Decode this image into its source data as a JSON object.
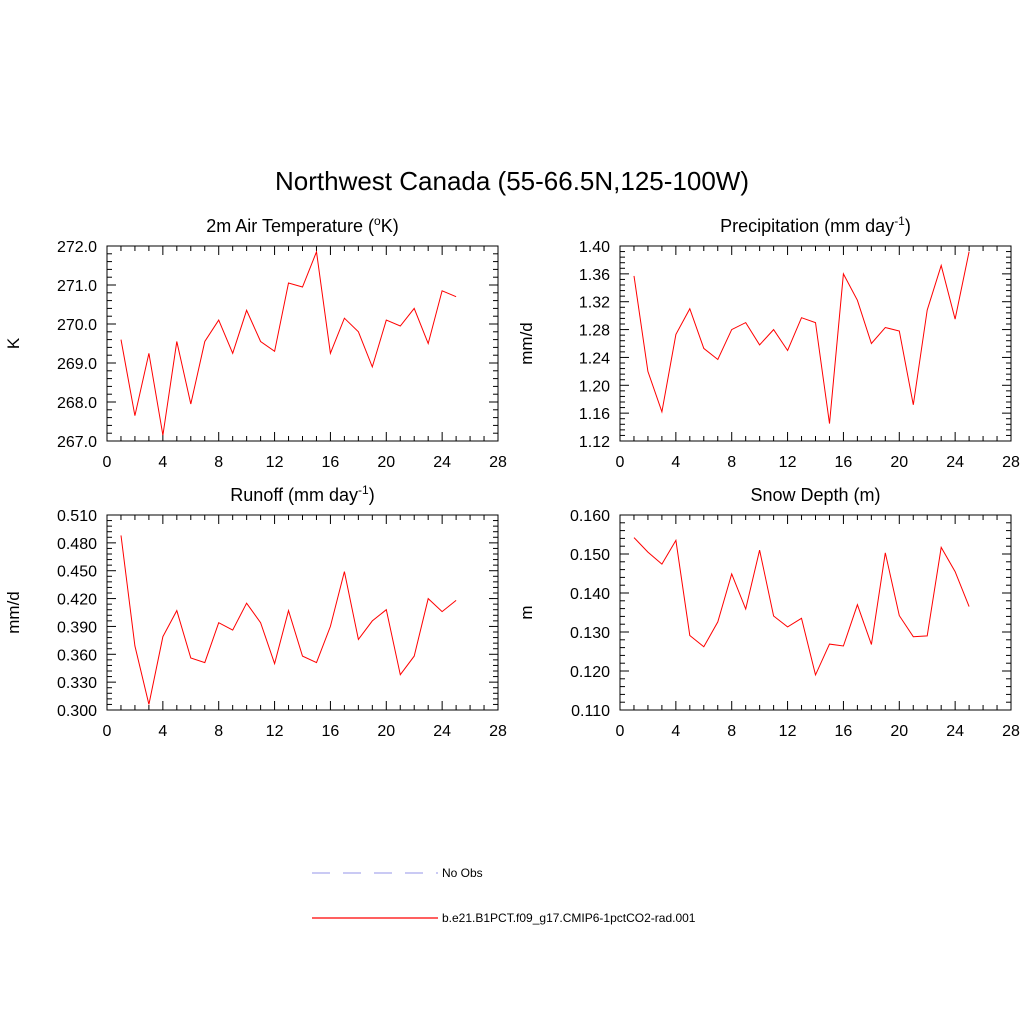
{
  "figure": {
    "title": "Northwest Canada (55-66.5N,125-100W)"
  },
  "chart_data": [
    {
      "type": "line",
      "title": "2m Air Temperature (oK)",
      "title_parts": {
        "prefix": "2m Air Temperature (",
        "sup": "o",
        "suffix": "K)"
      },
      "xlabel": "",
      "ylabel": "K",
      "xlim": [
        0,
        28
      ],
      "ylim": [
        267.0,
        272.0
      ],
      "xticks": [
        0,
        4,
        8,
        12,
        16,
        20,
        24,
        28
      ],
      "yticks": [
        "267.0",
        "268.0",
        "269.0",
        "270.0",
        "271.0",
        "272.0"
      ],
      "grid": false,
      "series": [
        {
          "color": "#ff0000",
          "x": [
            1,
            2,
            3,
            4,
            5,
            6,
            7,
            8,
            9,
            10,
            11,
            12,
            13,
            14,
            15,
            16,
            17,
            18,
            19,
            20,
            21,
            22,
            23,
            24,
            25
          ],
          "values": [
            269.6,
            267.65,
            269.25,
            267.15,
            269.55,
            267.95,
            269.55,
            270.1,
            269.25,
            270.35,
            269.55,
            269.3,
            271.05,
            270.95,
            271.85,
            269.25,
            270.15,
            269.8,
            268.9,
            270.1,
            269.95,
            270.4,
            269.5,
            270.85,
            270.7
          ]
        }
      ]
    },
    {
      "type": "line",
      "title": "Precipitation (mm day-1)",
      "title_parts": {
        "prefix": "Precipitation (mm day",
        "sup": "-1",
        "suffix": ")"
      },
      "xlabel": "",
      "ylabel": "mm/d",
      "xlim": [
        0,
        28
      ],
      "ylim": [
        1.12,
        1.4
      ],
      "xticks": [
        0,
        4,
        8,
        12,
        16,
        20,
        24,
        28
      ],
      "yticks": [
        "1.12",
        "1.16",
        "1.20",
        "1.24",
        "1.28",
        "1.32",
        "1.36",
        "1.40"
      ],
      "grid": false,
      "series": [
        {
          "color": "#ff0000",
          "x": [
            1,
            2,
            3,
            4,
            5,
            6,
            7,
            8,
            9,
            10,
            11,
            12,
            13,
            14,
            15,
            16,
            17,
            18,
            19,
            20,
            21,
            22,
            23,
            24,
            25
          ],
          "values": [
            1.357,
            1.22,
            1.162,
            1.273,
            1.31,
            1.253,
            1.237,
            1.28,
            1.29,
            1.258,
            1.28,
            1.25,
            1.297,
            1.29,
            1.145,
            1.36,
            1.322,
            1.26,
            1.283,
            1.278,
            1.172,
            1.308,
            1.372,
            1.295,
            1.392
          ]
        }
      ]
    },
    {
      "type": "line",
      "title": "Runoff (mm day-1)",
      "title_parts": {
        "prefix": "Runoff (mm day",
        "sup": "-1",
        "suffix": ")"
      },
      "xlabel": "",
      "ylabel": "mm/d",
      "xlim": [
        0,
        28
      ],
      "ylim": [
        0.3,
        0.51
      ],
      "xticks": [
        0,
        4,
        8,
        12,
        16,
        20,
        24,
        28
      ],
      "yticks": [
        "0.300",
        "0.330",
        "0.360",
        "0.390",
        "0.420",
        "0.450",
        "0.480",
        "0.510"
      ],
      "grid": false,
      "series": [
        {
          "color": "#ff0000",
          "x": [
            1,
            2,
            3,
            4,
            5,
            6,
            7,
            8,
            9,
            10,
            11,
            12,
            13,
            14,
            15,
            16,
            17,
            18,
            19,
            20,
            21,
            22,
            23,
            24,
            25
          ],
          "values": [
            0.488,
            0.369,
            0.306,
            0.379,
            0.407,
            0.356,
            0.351,
            0.394,
            0.386,
            0.415,
            0.394,
            0.35,
            0.407,
            0.358,
            0.351,
            0.39,
            0.449,
            0.376,
            0.396,
            0.408,
            0.338,
            0.358,
            0.42,
            0.406,
            0.418
          ]
        }
      ]
    },
    {
      "type": "line",
      "title": "Snow Depth (m)",
      "title_parts": {
        "prefix": "Snow Depth (m)",
        "sup": "",
        "suffix": ""
      },
      "xlabel": "",
      "ylabel": "m",
      "xlim": [
        0,
        28
      ],
      "ylim": [
        0.11,
        0.16
      ],
      "xticks": [
        0,
        4,
        8,
        12,
        16,
        20,
        24,
        28
      ],
      "yticks": [
        "0.110",
        "0.120",
        "0.130",
        "0.140",
        "0.150",
        "0.160"
      ],
      "grid": false,
      "series": [
        {
          "color": "#ff0000",
          "x": [
            1,
            2,
            3,
            4,
            5,
            6,
            7,
            8,
            9,
            10,
            11,
            12,
            13,
            14,
            15,
            16,
            17,
            18,
            19,
            20,
            21,
            22,
            23,
            24,
            25
          ],
          "values": [
            0.1542,
            0.1505,
            0.1474,
            0.1535,
            0.1291,
            0.1262,
            0.1326,
            0.1449,
            0.1359,
            0.151,
            0.1341,
            0.1313,
            0.1335,
            0.119,
            0.1269,
            0.1264,
            0.137,
            0.1268,
            0.1503,
            0.1342,
            0.1288,
            0.129,
            0.1517,
            0.1455,
            0.1365
          ]
        }
      ]
    }
  ],
  "legend": {
    "items": [
      {
        "label": "No Obs",
        "color": "#aaaaee",
        "dash": true
      },
      {
        "label": "b.e21.B1PCT.f09_g17.CMIP6-1pctCO2-rad.001",
        "color": "#ff0000",
        "dash": false
      }
    ]
  }
}
